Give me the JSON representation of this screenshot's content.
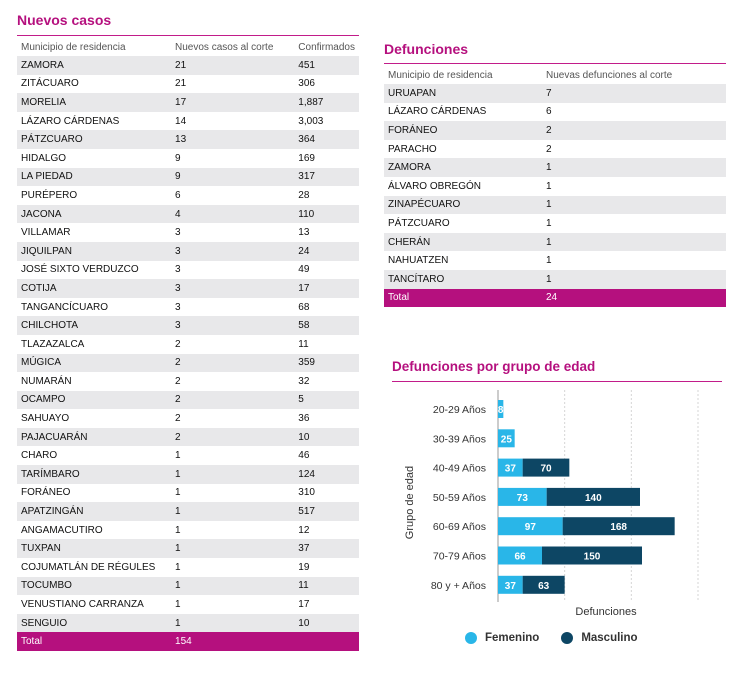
{
  "nuevos": {
    "title": "Nuevos casos",
    "headers": [
      "Municipio de residencia",
      "Nuevos casos al corte",
      "Confirmados"
    ],
    "rows": [
      [
        "ZAMORA",
        "21",
        "451"
      ],
      [
        "ZITÁCUARO",
        "21",
        "306"
      ],
      [
        "MORELIA",
        "17",
        "1,887"
      ],
      [
        "LÁZARO CÁRDENAS",
        "14",
        "3,003"
      ],
      [
        "PÁTZCUARO",
        "13",
        "364"
      ],
      [
        "HIDALGO",
        "9",
        "169"
      ],
      [
        "LA PIEDAD",
        "9",
        "317"
      ],
      [
        "PURÉPERO",
        "6",
        "28"
      ],
      [
        "JACONA",
        "4",
        "110"
      ],
      [
        "VILLAMAR",
        "3",
        "13"
      ],
      [
        "JIQUILPAN",
        "3",
        "24"
      ],
      [
        "JOSÉ SIXTO VERDUZCO",
        "3",
        "49"
      ],
      [
        "COTIJA",
        "3",
        "17"
      ],
      [
        "TANGANCÍCUARO",
        "3",
        "68"
      ],
      [
        "CHILCHOTA",
        "3",
        "58"
      ],
      [
        "TLAZAZALCA",
        "2",
        "11"
      ],
      [
        "MÚGICA",
        "2",
        "359"
      ],
      [
        "NUMARÁN",
        "2",
        "32"
      ],
      [
        "OCAMPO",
        "2",
        "5"
      ],
      [
        "SAHUAYO",
        "2",
        "36"
      ],
      [
        "PAJACUARÁN",
        "2",
        "10"
      ],
      [
        "CHARO",
        "1",
        "46"
      ],
      [
        "TARÍMBARO",
        "1",
        "124"
      ],
      [
        "FORÁNEO",
        "1",
        "310"
      ],
      [
        "APATZINGÁN",
        "1",
        "517"
      ],
      [
        "ANGAMACUTIRO",
        "1",
        "12"
      ],
      [
        "TUXPAN",
        "1",
        "37"
      ],
      [
        "COJUMATLÁN DE RÉGULES",
        "1",
        "19"
      ],
      [
        "TOCUMBO",
        "1",
        "11"
      ],
      [
        "VENUSTIANO CARRANZA",
        "1",
        "17"
      ],
      [
        "SENGUIO",
        "1",
        "10"
      ]
    ],
    "total": [
      "Total",
      "154",
      ""
    ]
  },
  "defunciones": {
    "title": "Defunciones",
    "headers": [
      "Municipio de residencia",
      "Nuevas defunciones al corte"
    ],
    "rows": [
      [
        "URUAPAN",
        "7"
      ],
      [
        "LÁZARO CÁRDENAS",
        "6"
      ],
      [
        "FORÁNEO",
        "2"
      ],
      [
        "PARACHO",
        "2"
      ],
      [
        "ZAMORA",
        "1"
      ],
      [
        "ÁLVARO OBREGÓN",
        "1"
      ],
      [
        "ZINAPÉCUARO",
        "1"
      ],
      [
        "PÁTZCUARO",
        "1"
      ],
      [
        "CHERÁN",
        "1"
      ],
      [
        "NAHUATZEN",
        "1"
      ],
      [
        "TANCÍTARO",
        "1"
      ]
    ],
    "total": [
      "Total",
      "24"
    ]
  },
  "chart_title": "Defunciones por grupo de edad",
  "colors": {
    "femenino": "#29b6e8",
    "masculino": "#0d4664",
    "accent": "#b5107e"
  },
  "chart_data": {
    "type": "bar",
    "orientation": "horizontal",
    "stacked": true,
    "title": "Defunciones por grupo de edad",
    "xlabel": "Defunciones",
    "ylabel": "Grupo de edad",
    "categories": [
      "20-29 Años",
      "30-39 Años",
      "40-49 Años",
      "50-59 Años",
      "60-69 Años",
      "70-79 Años",
      "80 y + Años"
    ],
    "series": [
      {
        "name": "Femenino",
        "values": [
          8,
          25,
          37,
          73,
          97,
          66,
          37
        ]
      },
      {
        "name": "Masculino",
        "values": [
          0,
          0,
          70,
          140,
          168,
          150,
          63
        ]
      }
    ],
    "xlim": [
      0,
      300
    ],
    "grid": true,
    "legend": "bottom"
  }
}
